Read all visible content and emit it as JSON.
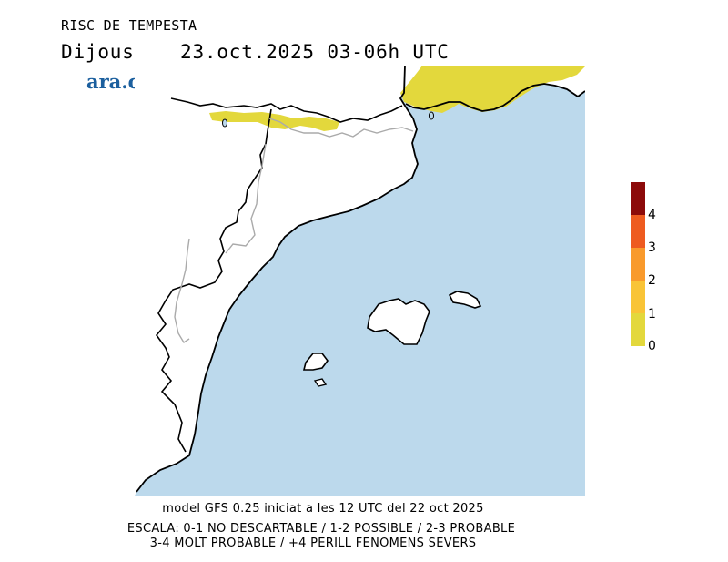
{
  "header": {
    "title": "RISC DE TEMPESTA",
    "day": "Dijous",
    "datetime": "23.oct.2025 03-06h UTC",
    "logo": "ara.cat"
  },
  "colors": {
    "sea": "#bcd9ec",
    "land": "#ffffff",
    "coast": "#000000",
    "border": "#aaaaaa",
    "risk_0_1": "#e3d83c",
    "risk_1_2": "#f9c437",
    "risk_2_3": "#f99a2c",
    "risk_3_4": "#ee5b20",
    "risk_4_plus": "#8c0a0a"
  },
  "legend": {
    "labels": [
      "0",
      "1",
      "2",
      "3",
      "4"
    ],
    "levels": [
      {
        "value": "0-1",
        "color": "#e3d83c"
      },
      {
        "value": "1-2",
        "color": "#f9c437"
      },
      {
        "value": "2-3",
        "color": "#f99a2c"
      },
      {
        "value": "3-4",
        "color": "#ee5b20"
      },
      {
        "value": "4+",
        "color": "#8c0a0a"
      }
    ]
  },
  "footer": {
    "model": "model GFS 0.25 iniciat a les 12 UTC del 22 oct 2025",
    "scale_line1": "ESCALA: 0-1 NO DESCARTABLE / 1-2 POSSIBLE / 2-3 PROBABLE",
    "scale_line2": "3-4 MOLT PROBABLE / +4 PERILL FENOMENS SEVERS"
  }
}
